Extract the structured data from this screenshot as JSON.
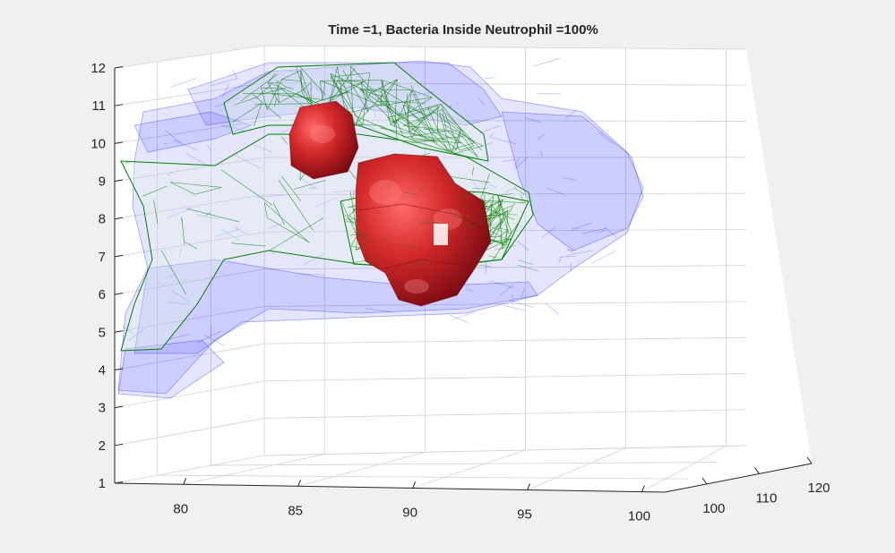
{
  "chart_data": {
    "type": "3d-isosurface",
    "title": "Time =1, Bacteria Inside Neutrophil  =100%",
    "xlabel": "",
    "ylabel": "",
    "zlabel": "",
    "x_ticks": [
      "80",
      "85",
      "90",
      "95",
      "100"
    ],
    "y_ticks": [
      "100",
      "110",
      "120"
    ],
    "z_ticks": [
      "1",
      "2",
      "3",
      "4",
      "5",
      "6",
      "7",
      "8",
      "9",
      "10",
      "11",
      "12"
    ],
    "xlim": [
      77,
      101
    ],
    "ylim": [
      92,
      120
    ],
    "zlim": [
      1,
      12
    ],
    "grid": true,
    "series": [
      {
        "name": "",
        "color": "#0000ff",
        "style": "transparent surface"
      },
      {
        "name": "",
        "color": "#008000",
        "style": "wireframe mesh"
      },
      {
        "name": "",
        "color": "#b01818",
        "style": "solid surface"
      }
    ]
  },
  "colors": {
    "figure_background": "#f0f0f0",
    "axes_background": "#ffffff",
    "membrane": "#0000ff",
    "nucleus": "#008000",
    "bacteria": "#b01818"
  }
}
